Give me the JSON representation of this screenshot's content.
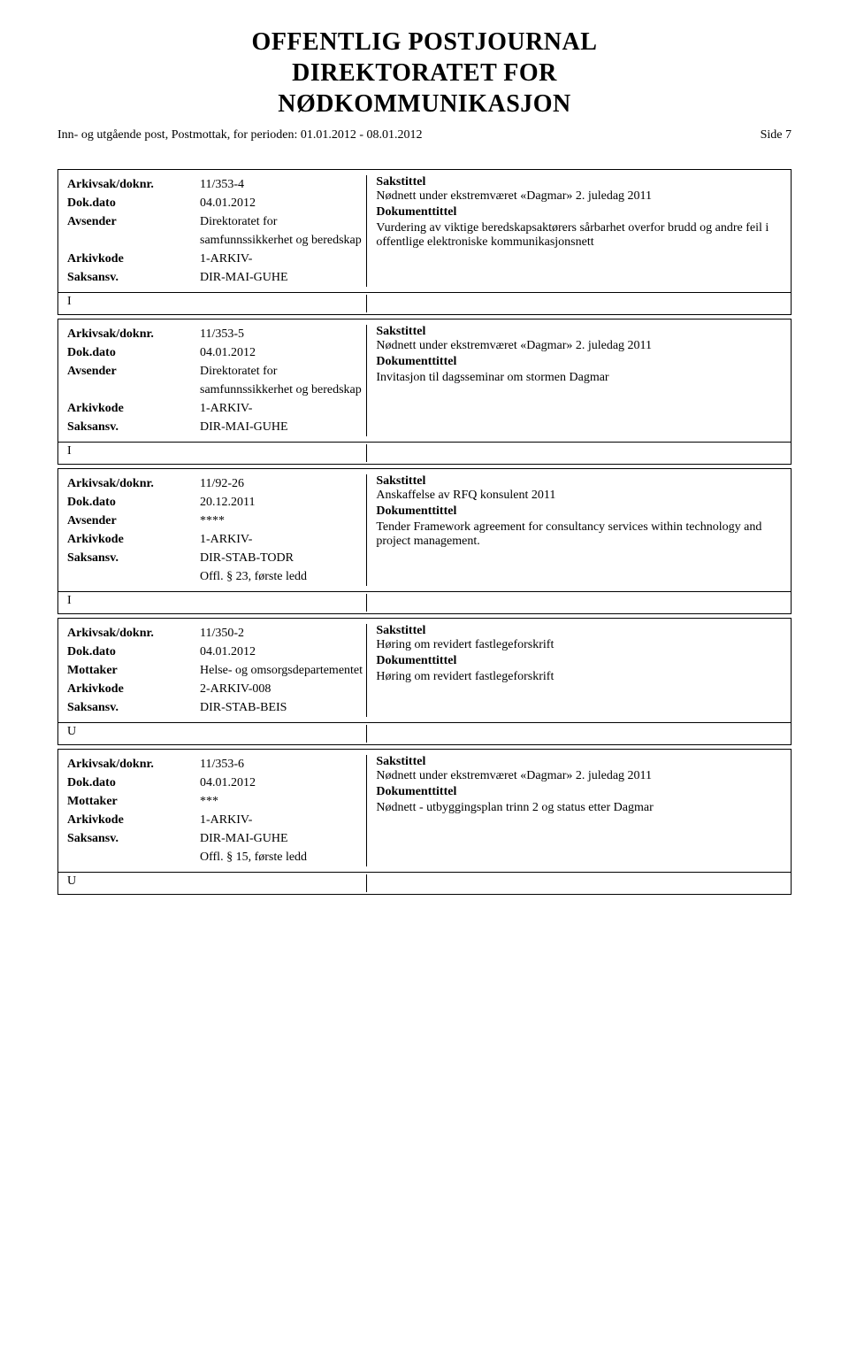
{
  "header": {
    "title_line1": "OFFENTLIG POSTJOURNAL",
    "title_line2": "DIREKTORATET FOR",
    "title_line3": "NØDKOMMUNIKASJON",
    "subheader": "Inn- og utgående post, Postmottak, for perioden: 01.01.2012 - 08.01.2012",
    "page": "Side 7"
  },
  "records": [
    {
      "arkivsak": "11/353-4",
      "dokdato": "04.01.2012",
      "party_label": "Avsender",
      "party": "Direktoratet for samfunnssikkerhet og beredskap",
      "arkivkode": "1-ARKIV-",
      "saksansv": "DIR-MAI-GUHE",
      "offl": "",
      "sakstittel_text": "Nødnett under ekstremværet «Dagmar» 2. juledag 2011",
      "dokumenttittel_text": "Vurdering av viktige beredskapsaktørers sårbarhet overfor brudd og andre feil i offentlige elektroniske kommunikasjonsnett",
      "io": "I"
    },
    {
      "arkivsak": "11/353-5",
      "dokdato": "04.01.2012",
      "party_label": "Avsender",
      "party": "Direktoratet for samfunnssikkerhet og beredskap",
      "arkivkode": "1-ARKIV-",
      "saksansv": "DIR-MAI-GUHE",
      "offl": "",
      "sakstittel_text": "Nødnett under ekstremværet «Dagmar» 2. juledag 2011",
      "dokumenttittel_text": "Invitasjon til dagsseminar om stormen Dagmar",
      "io": "I"
    },
    {
      "arkivsak": "11/92-26",
      "dokdato": "20.12.2011",
      "party_label": "Avsender",
      "party": "****",
      "arkivkode": "1-ARKIV-",
      "saksansv": "DIR-STAB-TODR",
      "offl": "Offl. § 23, første ledd",
      "sakstittel_text": "Anskaffelse av RFQ  konsulent 2011",
      "dokumenttittel_text": "Tender Framework agreement for consultancy services within technology and project management.",
      "io": "I"
    },
    {
      "arkivsak": "11/350-2",
      "dokdato": "04.01.2012",
      "party_label": "Mottaker",
      "party": "Helse- og omsorgsdepartementet",
      "arkivkode": "2-ARKIV-008",
      "saksansv": "DIR-STAB-BEIS",
      "offl": "",
      "sakstittel_text": "Høring om revidert fastlegeforskrift",
      "dokumenttittel_text": "Høring om revidert fastlegeforskrift",
      "io": "U"
    },
    {
      "arkivsak": "11/353-6",
      "dokdato": "04.01.2012",
      "party_label": "Mottaker",
      "party": "***",
      "arkivkode": "1-ARKIV-",
      "saksansv": "DIR-MAI-GUHE",
      "offl": "Offl. § 15, første ledd",
      "sakstittel_text": "Nødnett under ekstremværet «Dagmar» 2. juledag 2011",
      "dokumenttittel_text": "Nødnett - utbyggingsplan trinn 2 og status etter Dagmar",
      "io": "U"
    }
  ],
  "labels": {
    "arkivsak": "Arkivsak/doknr.",
    "dokdato": "Dok.dato",
    "arkivkode": "Arkivkode",
    "saksansv": "Saksansv.",
    "sakstittel": "Sakstittel",
    "dokumenttittel": "Dokumenttittel"
  }
}
